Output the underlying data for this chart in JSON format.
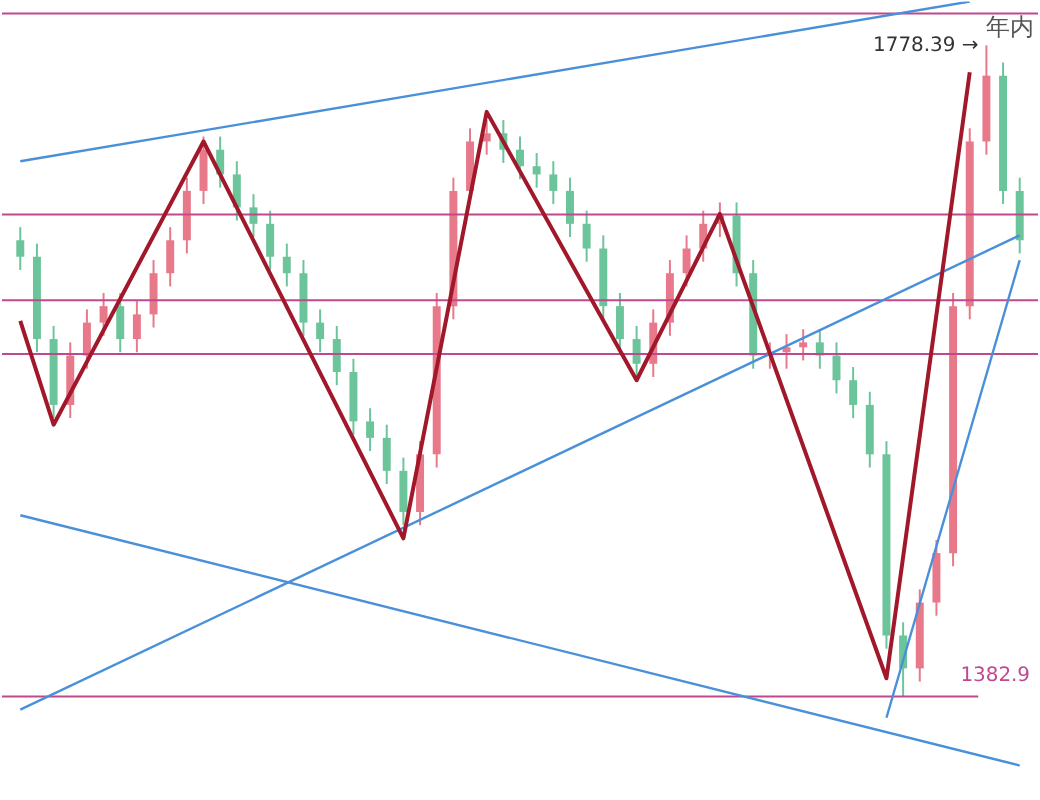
{
  "chart_data": {
    "type": "candlestick",
    "categories": [
      null,
      null,
      null,
      null,
      null,
      null,
      null,
      null,
      null,
      null,
      null,
      null,
      null,
      null,
      null,
      null,
      null,
      null,
      null,
      null,
      null,
      null,
      null,
      null,
      null,
      null,
      null,
      null,
      null,
      null,
      null,
      null,
      null,
      null,
      null,
      null,
      null,
      null,
      null,
      null,
      null,
      null,
      null,
      null,
      null,
      null,
      null,
      null,
      null,
      null,
      null,
      null,
      null,
      null,
      null,
      null,
      null,
      null,
      null,
      null,
      null
    ],
    "ohlc": [
      [
        1660,
        1668,
        1642,
        1650
      ],
      [
        1650,
        1658,
        1592,
        1600
      ],
      [
        1600,
        1608,
        1552,
        1560
      ],
      [
        1560,
        1598,
        1552,
        1590
      ],
      [
        1590,
        1618,
        1582,
        1610
      ],
      [
        1610,
        1628,
        1602,
        1620
      ],
      [
        1620,
        1628,
        1592,
        1600
      ],
      [
        1600,
        1623,
        1592,
        1615
      ],
      [
        1615,
        1648,
        1607,
        1640
      ],
      [
        1640,
        1668,
        1632,
        1660
      ],
      [
        1660,
        1698,
        1652,
        1690
      ],
      [
        1690,
        1723,
        1682,
        1715
      ],
      [
        1715,
        1723,
        1692,
        1700
      ],
      [
        1700,
        1708,
        1672,
        1680
      ],
      [
        1680,
        1688,
        1662,
        1670
      ],
      [
        1670,
        1678,
        1642,
        1650
      ],
      [
        1650,
        1658,
        1632,
        1640
      ],
      [
        1640,
        1648,
        1602,
        1610
      ],
      [
        1610,
        1618,
        1592,
        1600
      ],
      [
        1600,
        1608,
        1572,
        1580
      ],
      [
        1580,
        1588,
        1542,
        1550
      ],
      [
        1550,
        1558,
        1532,
        1540
      ],
      [
        1540,
        1548,
        1512,
        1520
      ],
      [
        1520,
        1528,
        1487,
        1495
      ],
      [
        1495,
        1538,
        1487,
        1530
      ],
      [
        1530,
        1628,
        1522,
        1620
      ],
      [
        1620,
        1698,
        1612,
        1690
      ],
      [
        1690,
        1728,
        1682,
        1720
      ],
      [
        1720,
        1733,
        1712,
        1725
      ],
      [
        1725,
        1733,
        1707,
        1715
      ],
      [
        1715,
        1723,
        1697,
        1705
      ],
      [
        1705,
        1713,
        1692,
        1700
      ],
      [
        1700,
        1708,
        1682,
        1690
      ],
      [
        1690,
        1698,
        1662,
        1670
      ],
      [
        1670,
        1678,
        1647,
        1655
      ],
      [
        1655,
        1663,
        1612,
        1620
      ],
      [
        1620,
        1628,
        1592,
        1600
      ],
      [
        1600,
        1608,
        1577,
        1585
      ],
      [
        1585,
        1618,
        1577,
        1610
      ],
      [
        1610,
        1648,
        1602,
        1640
      ],
      [
        1640,
        1663,
        1632,
        1655
      ],
      [
        1655,
        1678,
        1647,
        1670
      ],
      [
        1670,
        1683,
        1662,
        1675
      ],
      [
        1675,
        1683,
        1632,
        1640
      ],
      [
        1640,
        1648,
        1582,
        1590
      ],
      [
        1590,
        1598,
        1582,
        1592
      ],
      [
        1592,
        1603,
        1582,
        1595
      ],
      [
        1595,
        1606,
        1587,
        1598
      ],
      [
        1598,
        1606,
        1582,
        1590
      ],
      [
        1590,
        1598,
        1567,
        1575
      ],
      [
        1575,
        1583,
        1552,
        1560
      ],
      [
        1560,
        1568,
        1522,
        1530
      ],
      [
        1530,
        1538,
        1412,
        1420
      ],
      [
        1420,
        1428,
        1382.9,
        1400
      ],
      [
        1400,
        1448,
        1392,
        1440
      ],
      [
        1440,
        1478,
        1432,
        1470
      ],
      [
        1470,
        1628,
        1462,
        1620
      ],
      [
        1620,
        1728,
        1612,
        1720
      ],
      [
        1720,
        1778.39,
        1712,
        1760
      ],
      [
        1760,
        1768,
        1682,
        1690
      ],
      [
        1690,
        1698,
        1652,
        1660
      ]
    ],
    "series": [
      {
        "type": "line",
        "color": "#4a90d9",
        "values": [
          1708,
          null,
          null,
          null,
          null,
          null,
          null,
          null,
          null,
          null,
          null,
          null,
          null,
          null,
          null,
          null,
          null,
          null,
          null,
          null,
          null,
          null,
          null,
          null,
          null,
          null,
          null,
          null,
          null,
          null,
          null,
          null,
          null,
          null,
          null,
          null,
          null,
          null,
          null,
          null,
          null,
          null,
          null,
          null,
          null,
          null,
          null,
          null,
          null,
          null,
          null,
          null,
          null,
          null,
          null,
          null,
          null,
          1805,
          null,
          null,
          null
        ]
      },
      {
        "type": "line",
        "color": "#4a90d9",
        "values": [
          1375,
          null,
          null,
          null,
          null,
          null,
          null,
          null,
          null,
          null,
          null,
          null,
          null,
          null,
          null,
          null,
          null,
          null,
          null,
          null,
          null,
          null,
          null,
          null,
          null,
          null,
          null,
          null,
          null,
          null,
          null,
          null,
          null,
          null,
          null,
          null,
          null,
          null,
          null,
          null,
          null,
          null,
          null,
          null,
          null,
          null,
          null,
          null,
          null,
          null,
          null,
          null,
          null,
          null,
          null,
          null,
          null,
          null,
          null,
          null,
          1663
        ]
      },
      {
        "type": "line",
        "color": "#4a90d9",
        "values": [
          1493,
          null,
          null,
          null,
          null,
          null,
          null,
          null,
          null,
          null,
          null,
          null,
          null,
          null,
          null,
          null,
          null,
          null,
          null,
          null,
          null,
          null,
          null,
          null,
          null,
          null,
          null,
          null,
          null,
          null,
          null,
          null,
          null,
          null,
          null,
          null,
          null,
          null,
          null,
          null,
          null,
          null,
          null,
          null,
          null,
          null,
          null,
          null,
          null,
          null,
          null,
          null,
          null,
          null,
          null,
          null,
          null,
          null,
          null,
          null,
          1341
        ]
      },
      {
        "type": "line",
        "color": "#4a90d9",
        "values": [
          null,
          null,
          null,
          null,
          null,
          null,
          null,
          null,
          null,
          null,
          null,
          null,
          null,
          null,
          null,
          null,
          null,
          null,
          null,
          null,
          null,
          null,
          null,
          null,
          null,
          null,
          null,
          null,
          null,
          null,
          null,
          null,
          null,
          null,
          null,
          null,
          null,
          null,
          null,
          null,
          null,
          null,
          null,
          null,
          null,
          null,
          null,
          null,
          null,
          null,
          null,
          null,
          1370,
          null,
          null,
          null,
          null,
          null,
          null,
          null,
          1648
        ]
      },
      {
        "type": "line",
        "color": "#a0182a",
        "values": [
          1611,
          null,
          1548,
          null,
          null,
          null,
          null,
          null,
          null,
          null,
          null,
          1720,
          null,
          null,
          null,
          null,
          null,
          null,
          null,
          null,
          null,
          null,
          null,
          1479,
          null,
          null,
          null,
          null,
          1738,
          null,
          null,
          null,
          null,
          null,
          null,
          null,
          null,
          1575,
          null,
          null,
          null,
          null,
          1676,
          null,
          null,
          null,
          null,
          null,
          null,
          null,
          null,
          null,
          1394,
          null,
          null,
          null,
          null,
          1762,
          null,
          null,
          null
        ]
      }
    ],
    "ylim": [
      1321,
      1805
    ],
    "ref_lines": [
      {
        "axis": "y",
        "value": 1797.7,
        "color": "#c0488f"
      },
      {
        "axis": "y",
        "value": 1675.6,
        "color": "#c0488f"
      },
      {
        "axis": "y",
        "value": 1623.6,
        "color": "#c0488f"
      },
      {
        "axis": "y",
        "value": 1591,
        "color": "#c0488f"
      },
      {
        "axis": "y",
        "value": 1382.9,
        "label": "1382.9",
        "color": "#c0488f"
      }
    ],
    "annotations": [
      "1778.39 →",
      "年内"
    ],
    "grid": false
  }
}
